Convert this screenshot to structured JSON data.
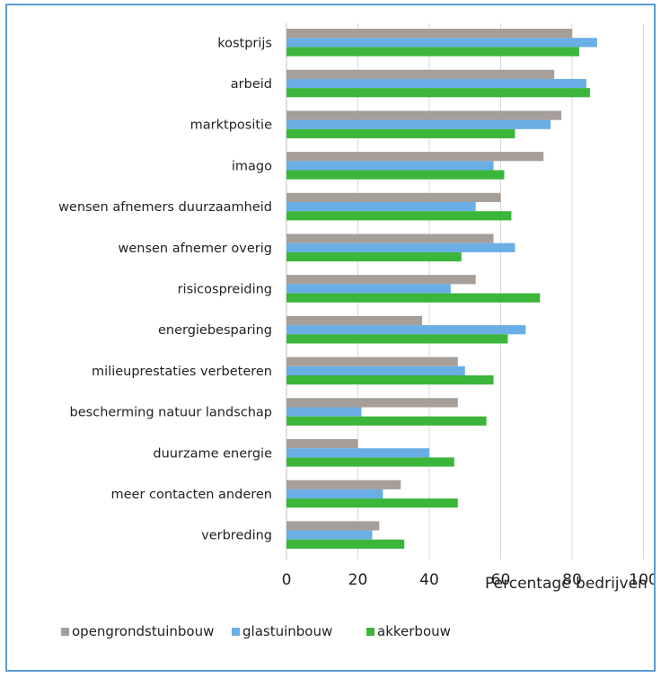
{
  "chart_data": {
    "type": "bar",
    "orientation": "horizontal",
    "categories": [
      "kostprijs",
      "arbeid",
      "marktpositie",
      "imago",
      "wensen afnemers duurzaamheid",
      "wensen afnemer overig",
      "risicospreiding",
      "energiebesparing",
      "milieuprestaties verbeteren",
      "bescherming natuur landschap",
      "duurzame energie",
      "meer contacten anderen",
      "verbreding"
    ],
    "series": [
      {
        "name": "opengrondstuinbouw",
        "color": "#a69e98",
        "values": [
          80,
          75,
          77,
          72,
          60,
          58,
          53,
          38,
          48,
          48,
          20,
          32,
          26
        ]
      },
      {
        "name": "glastuinbouw",
        "color": "#6aaee6",
        "values": [
          87,
          84,
          74,
          58,
          53,
          64,
          46,
          67,
          50,
          21,
          40,
          27,
          24
        ]
      },
      {
        "name": "akkerbouw",
        "color": "#3bb63b",
        "values": [
          82,
          85,
          64,
          61,
          63,
          49,
          71,
          62,
          58,
          56,
          47,
          48,
          33
        ]
      }
    ],
    "xlim": [
      0,
      100
    ],
    "xticks": [
      "0",
      "20",
      "40",
      "60",
      "80",
      "100"
    ],
    "xlabel": "Percentage bedrijven",
    "ylabel": "",
    "title": "",
    "grid": "vertical",
    "legend_position": "bottom-left"
  }
}
